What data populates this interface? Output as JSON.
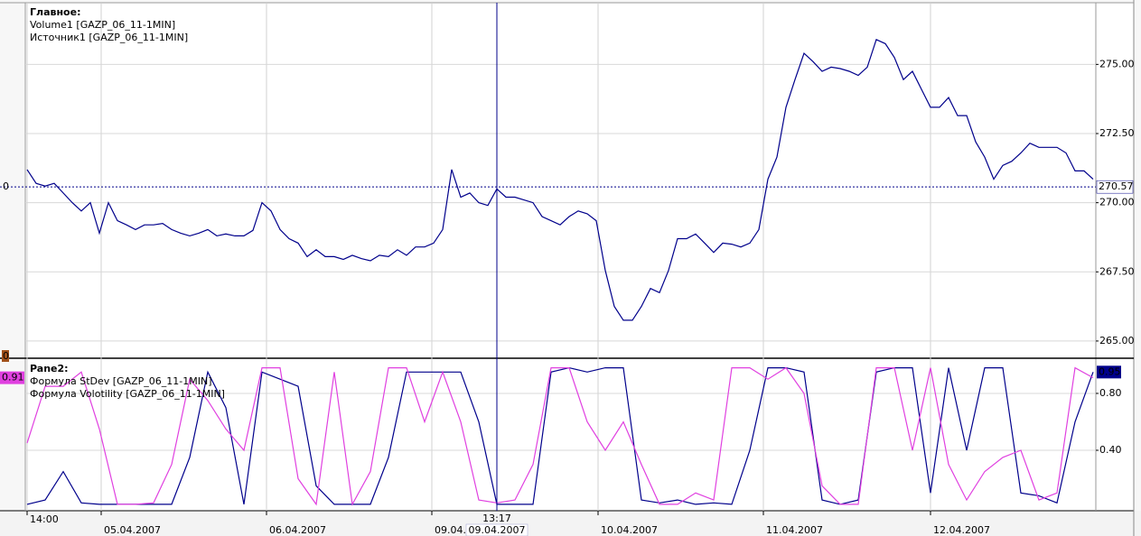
{
  "chart_data": [
    {
      "type": "line",
      "title": "Главное:",
      "legend_extra": [
        {
          "name": "Volume1 [GAZP_06_11-1MIN]",
          "color": "#b0601a"
        }
      ],
      "x": [
        0,
        1,
        2,
        3,
        4,
        5,
        6,
        7,
        8,
        9,
        10,
        11,
        12,
        13,
        14,
        15,
        16,
        17,
        18,
        19,
        20,
        21,
        22,
        23,
        24,
        25,
        26,
        27,
        28,
        29,
        30,
        31,
        32,
        33,
        34,
        35,
        36,
        37,
        38,
        39,
        40,
        41,
        42,
        43,
        44,
        45,
        46,
        47,
        48,
        49,
        50,
        51,
        52,
        53,
        54,
        55,
        56,
        57,
        58,
        59,
        60,
        61,
        62,
        63,
        64,
        65,
        66,
        67,
        68,
        69,
        70,
        71,
        72,
        73,
        74,
        75,
        76,
        77,
        78,
        79,
        80,
        81,
        82,
        83,
        84,
        85,
        86,
        87,
        88,
        89,
        90,
        91,
        92,
        93,
        94,
        95,
        96,
        97,
        98,
        99,
        100,
        101,
        102,
        103,
        104,
        105,
        106,
        107,
        108,
        109,
        110,
        111,
        112,
        113,
        114,
        115,
        116,
        117,
        118
      ],
      "series": [
        {
          "name": "Источник1 [GAZP_06_11-1MIN]",
          "color": "#00008b",
          "values": [
            271.2,
            270.7,
            270.6,
            270.7,
            270.35,
            270.0,
            269.7,
            270.0,
            268.9,
            270.0,
            269.35,
            269.2,
            269.03,
            269.2,
            269.2,
            269.25,
            269.03,
            268.9,
            268.8,
            268.9,
            269.03,
            268.8,
            268.87,
            268.8,
            268.8,
            269.0,
            270.0,
            269.7,
            269.03,
            268.7,
            268.54,
            268.05,
            268.3,
            268.05,
            268.05,
            267.95,
            268.1,
            267.98,
            267.9,
            268.1,
            268.05,
            268.3,
            268.1,
            268.4,
            268.4,
            268.54,
            269.03,
            271.2,
            270.2,
            270.35,
            270.0,
            269.9,
            270.5,
            270.2,
            270.2,
            270.1,
            270.0,
            269.5,
            269.35,
            269.2,
            269.5,
            269.7,
            269.6,
            269.35,
            267.55,
            266.25,
            265.75,
            265.75,
            266.25,
            266.9,
            266.75,
            267.55,
            268.7,
            268.7,
            268.87,
            268.54,
            268.2,
            268.54,
            268.5,
            268.4,
            268.54,
            269.03,
            270.85,
            271.65,
            273.45,
            274.45,
            275.4,
            275.1,
            274.75,
            274.9,
            274.85,
            274.75,
            274.6,
            274.9,
            275.9,
            275.75,
            275.25,
            274.45,
            274.75,
            274.1,
            273.45,
            273.45,
            273.8,
            273.15,
            273.15,
            272.2,
            271.65,
            270.85,
            271.35,
            271.5,
            271.8,
            272.15,
            272.0,
            272.0,
            272.0,
            271.8,
            271.15,
            271.15,
            270.85
          ]
        }
      ],
      "xlim": [
        -0.2,
        118.3
      ],
      "xticks": [
        {
          "value": 0,
          "label": "14:00"
        },
        {
          "value": 8.2,
          "label": "05.04.2007"
        },
        {
          "value": 26.5,
          "label": "06.04.2007"
        },
        {
          "value": 44.8,
          "label": "09.04."
        },
        {
          "value": 63.2,
          "label": "10.04.2007"
        },
        {
          "value": 81.5,
          "label": "11.04.2007"
        },
        {
          "value": 100,
          "label": "12.04.2007"
        }
      ],
      "ylim": [
        264.41,
        277.23
      ],
      "yticks": [
        {
          "value": 265,
          "label": "265.00"
        },
        {
          "value": 267.5,
          "label": "267.50"
        },
        {
          "value": 270,
          "label": "270.00"
        },
        {
          "value": 272.5,
          "label": "272.50"
        },
        {
          "value": 275,
          "label": "275.00"
        }
      ],
      "grid": true,
      "price_line": {
        "value": 270.57,
        "label": "270.57"
      },
      "volume_zero": "0",
      "volume_badge": "0",
      "crosshair": {
        "x": 52,
        "time_label": "13:17",
        "date_label": "09.04.2007"
      }
    },
    {
      "type": "line",
      "title": "Pane2:",
      "x": [
        0,
        2,
        4,
        6,
        8,
        10,
        12,
        14,
        16,
        18,
        20,
        22,
        24,
        26,
        28,
        30,
        32,
        34,
        36,
        38,
        40,
        42,
        44,
        46,
        48,
        50,
        52,
        54,
        56,
        58,
        60,
        62,
        64,
        66,
        68,
        70,
        72,
        74,
        76,
        78,
        80,
        82,
        84,
        86,
        88,
        90,
        92,
        94,
        96,
        98,
        100,
        102,
        104,
        106,
        108,
        110,
        112,
        114,
        116,
        118
      ],
      "series": [
        {
          "name": "Формула StDev [GAZP_06_11-1MIN]",
          "color": "#00008b",
          "last_value": {
            "value": 0.95,
            "label": "0.95",
            "side": "right"
          },
          "values": [
            0.02,
            0.05,
            0.25,
            0.03,
            0.02,
            0.02,
            0.02,
            0.02,
            0.02,
            0.35,
            0.95,
            0.7,
            0.02,
            0.95,
            0.9,
            0.85,
            0.15,
            0.02,
            0.02,
            0.02,
            0.35,
            0.95,
            0.95,
            0.95,
            0.95,
            0.6,
            0.02,
            0.02,
            0.02,
            0.95,
            0.98,
            0.95,
            0.98,
            0.98,
            0.05,
            0.03,
            0.05,
            0.02,
            0.03,
            0.02,
            0.4,
            0.98,
            0.98,
            0.95,
            0.05,
            0.02,
            0.05,
            0.95,
            0.98,
            0.98,
            0.1,
            0.98,
            0.4,
            0.98,
            0.98,
            0.1,
            0.08,
            0.03,
            0.6,
            0.95
          ]
        },
        {
          "name": "Формула Volotility [GAZP_06_11-1MIN]",
          "color": "#e040e0",
          "last_value": {
            "value": 0.91,
            "label": "0.91",
            "side": "left"
          },
          "values": [
            0.45,
            0.85,
            0.85,
            0.95,
            0.55,
            0.02,
            0.02,
            0.03,
            0.3,
            0.9,
            0.75,
            0.55,
            0.4,
            0.98,
            0.98,
            0.2,
            0.02,
            0.95,
            0.02,
            0.25,
            0.98,
            0.98,
            0.6,
            0.95,
            0.6,
            0.05,
            0.03,
            0.05,
            0.3,
            0.98,
            0.98,
            0.6,
            0.4,
            0.6,
            0.3,
            0.02,
            0.02,
            0.1,
            0.05,
            0.98,
            0.98,
            0.9,
            0.98,
            0.8,
            0.15,
            0.02,
            0.02,
            0.98,
            0.98,
            0.4,
            0.98,
            0.3,
            0.05,
            0.25,
            0.35,
            0.4,
            0.05,
            0.1,
            0.98,
            0.91
          ]
        }
      ],
      "xlim": [
        -0.2,
        118.3
      ],
      "ylim": [
        -0.019,
        1.041
      ],
      "yticks": [
        {
          "value": 0.4,
          "label": "0.40"
        },
        {
          "value": 0.8,
          "label": "0.80"
        }
      ],
      "grid": true
    }
  ]
}
